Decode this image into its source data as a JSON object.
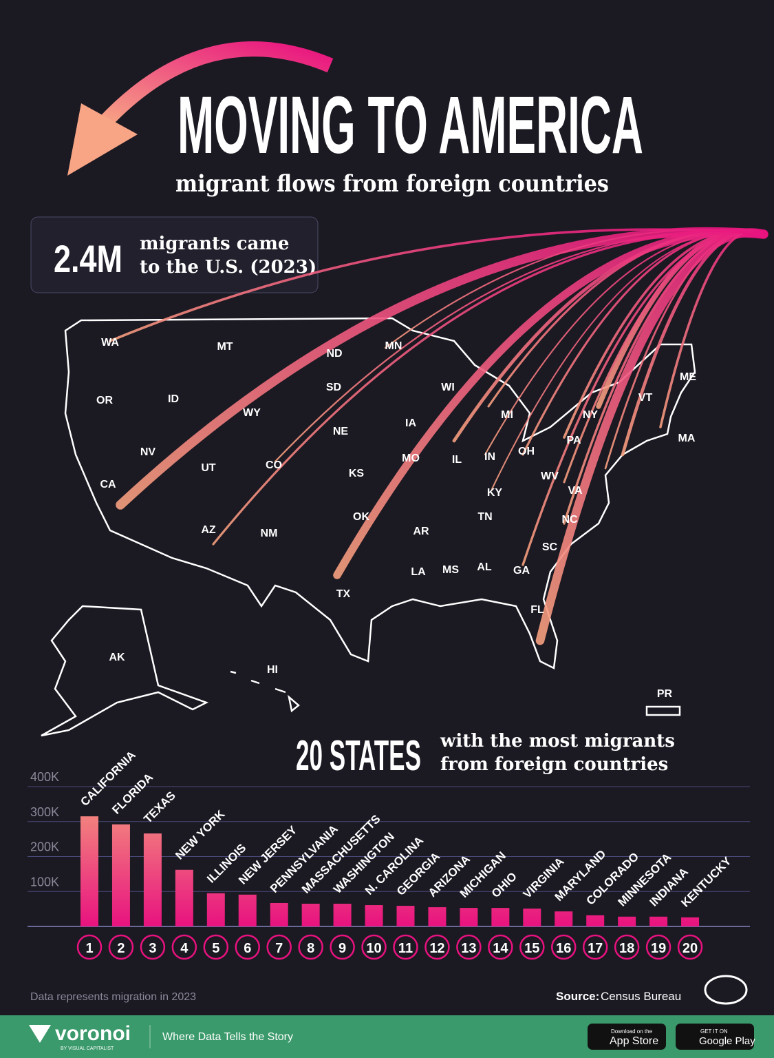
{
  "header": {
    "title": "MOVING TO AMERICA",
    "subtitle": "migrant flows from foreign countries"
  },
  "stat": {
    "value": "2.4M",
    "lines": [
      "migrants came",
      "to the U.S. (2023)"
    ]
  },
  "map": {
    "labels": [
      "WA",
      "MT",
      "ND",
      "MN",
      "OR",
      "ID",
      "SD",
      "WI",
      "ME",
      "WY",
      "IA",
      "MI",
      "NY",
      "VT",
      "NE",
      "PA",
      "MA",
      "NV",
      "UT",
      "CO",
      "IL",
      "IN",
      "OH",
      "MO",
      "KS",
      "CA",
      "WV",
      "VA",
      "KY",
      "OK",
      "AZ",
      "NM",
      "AR",
      "TN",
      "NC",
      "SC",
      "LA",
      "MS",
      "AL",
      "GA",
      "TX",
      "FL",
      "AK",
      "HI",
      "PR"
    ]
  },
  "chart_heading": {
    "title": "20 STATES",
    "lines": [
      "with the most migrants",
      "from foreign countries"
    ]
  },
  "chart_data": {
    "type": "bar",
    "categories": [
      "CALIFORNIA",
      "FLORIDA",
      "TEXAS",
      "NEW YORK",
      "ILLINOIS",
      "NEW JERSEY",
      "PENNSYLVANIA",
      "MASSACHUSETTS",
      "WASHINGTON",
      "N. CAROLINA",
      "GEORGIA",
      "ARIZONA",
      "MICHIGAN",
      "OHIO",
      "VIRGINIA",
      "MARYLAND",
      "COLORADO",
      "MINNESOTA",
      "INDIANA",
      "KENTUCKY"
    ],
    "values": [
      315000,
      292000,
      266000,
      162000,
      95000,
      91000,
      67000,
      65000,
      65000,
      61000,
      59000,
      55000,
      53000,
      53000,
      51000,
      43000,
      32000,
      28000,
      28000,
      26000
    ],
    "ranks": [
      1,
      2,
      3,
      4,
      5,
      6,
      7,
      8,
      9,
      10,
      11,
      12,
      13,
      14,
      15,
      16,
      17,
      18,
      19,
      20
    ],
    "ylim": [
      0,
      400000
    ],
    "yticks": [
      {
        "value": 100000,
        "label": "100K"
      },
      {
        "value": 200000,
        "label": "200K"
      },
      {
        "value": 300000,
        "label": "300K"
      },
      {
        "value": 400000,
        "label": "400K"
      }
    ],
    "grid": true,
    "gradient": [
      "#e8127f",
      "#f5a07e"
    ]
  },
  "notes": {
    "data_note": "Data represents migration in 2023",
    "source_label": "Source:",
    "source": "Census Bureau"
  },
  "footer": {
    "brand": "voronoi",
    "brand_sub": "BY VISUAL CAPITALIST",
    "tagline": "Where Data Tells the Story",
    "app_store": [
      "Download on the",
      "App Store"
    ],
    "google_play": [
      "GET IT ON",
      "Google Play"
    ]
  }
}
